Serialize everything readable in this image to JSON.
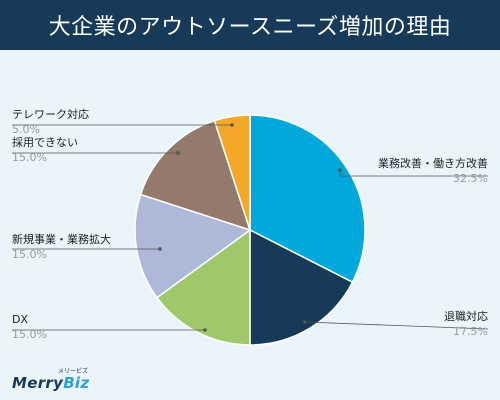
{
  "title": "大企業のアウトソースニーズ増加の理由",
  "logo": {
    "text_main": "Merry",
    "text_biz": "Biz",
    "text_kana": "メリービズ"
  },
  "chart_data": {
    "type": "pie",
    "title": "大企業のアウトソースニーズ増加の理由",
    "start_angle_deg": 0,
    "direction": "clockwise",
    "slices": [
      {
        "label": "業務改善・働き方改善",
        "value": 32.5,
        "pct_label": "32.5%",
        "color": "#00a8dc"
      },
      {
        "label": "退職対応",
        "value": 17.5,
        "pct_label": "17.5%",
        "color": "#163a57"
      },
      {
        "label": "DX",
        "value": 15.0,
        "pct_label": "15.0%",
        "color": "#9fc86a"
      },
      {
        "label": "新規事業・業務拡大",
        "value": 15.0,
        "pct_label": "15.0%",
        "color": "#aeb8d9"
      },
      {
        "label": "採用できない",
        "value": 15.0,
        "pct_label": "15.0%",
        "color": "#937a6c"
      },
      {
        "label": "テレワーク対応",
        "value": 5.0,
        "pct_label": "5.0%",
        "color": "#f3a927"
      }
    ]
  }
}
